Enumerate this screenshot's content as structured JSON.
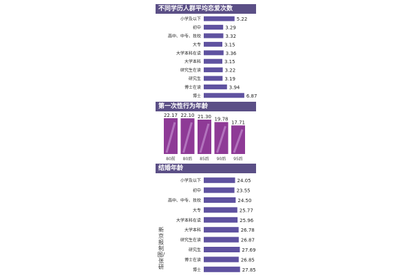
{
  "headers": {
    "love_count_title": "不同学历人群平均恋爱次数",
    "first_sex_title": "第一次性行为年龄",
    "marriage_age_title": "结婚年龄"
  },
  "source_note": "新京报制图/张研",
  "colors": {
    "header_bg": "#5b4f86",
    "bar_fill": "#5f52a0",
    "bar_fill_column": "#8e3a96",
    "bar_stripe": "#b273bd"
  },
  "chart_data": [
    {
      "type": "bar",
      "orientation": "horizontal",
      "title": "不同学历人群平均恋爱次数",
      "categories": [
        "小学及以下",
        "初中",
        "高中、中专、技校",
        "大专",
        "大学本科在读",
        "大学本科",
        "研究生在读",
        "研究生",
        "博士在读",
        "博士"
      ],
      "values": [
        5.22,
        3.29,
        3.32,
        3.15,
        3.36,
        3.15,
        3.22,
        3.19,
        3.94,
        6.87
      ],
      "value_labels": [
        "5.22",
        "3.29",
        "3.32",
        "3.15",
        "3.36",
        "3.15",
        "3.22",
        "3.19",
        "3.94",
        "6.87"
      ],
      "xlim": [
        0,
        7
      ],
      "grid": false
    },
    {
      "type": "bar",
      "orientation": "vertical",
      "title": "第一次性行为年龄",
      "categories": [
        "80前",
        "80后",
        "85后",
        "90后",
        "95后"
      ],
      "values": [
        22.17,
        22.1,
        21.3,
        19.78,
        17.71
      ],
      "value_labels": [
        "22.17",
        "22.10",
        "21.30",
        "19.78",
        "17.71"
      ],
      "ylim": [
        0,
        23
      ],
      "grid": false
    },
    {
      "type": "bar",
      "orientation": "horizontal",
      "title": "结婚年龄",
      "categories": [
        "小学及以下",
        "初中",
        "高中、中专、技校",
        "大专",
        "大学本科在读",
        "大学本科",
        "研究生在读",
        "研究生",
        "博士在读",
        "博士"
      ],
      "values": [
        24.05,
        23.55,
        24.5,
        25.77,
        25.96,
        26.78,
        26.87,
        27.69,
        26.85,
        27.85
      ],
      "value_labels": [
        "24.05",
        "23.55",
        "24.50",
        "25.77",
        "25.96",
        "26.78",
        "26.87",
        "27.69",
        "26.85",
        "27.85"
      ],
      "xlim": [
        0,
        28
      ],
      "grid": false
    }
  ]
}
